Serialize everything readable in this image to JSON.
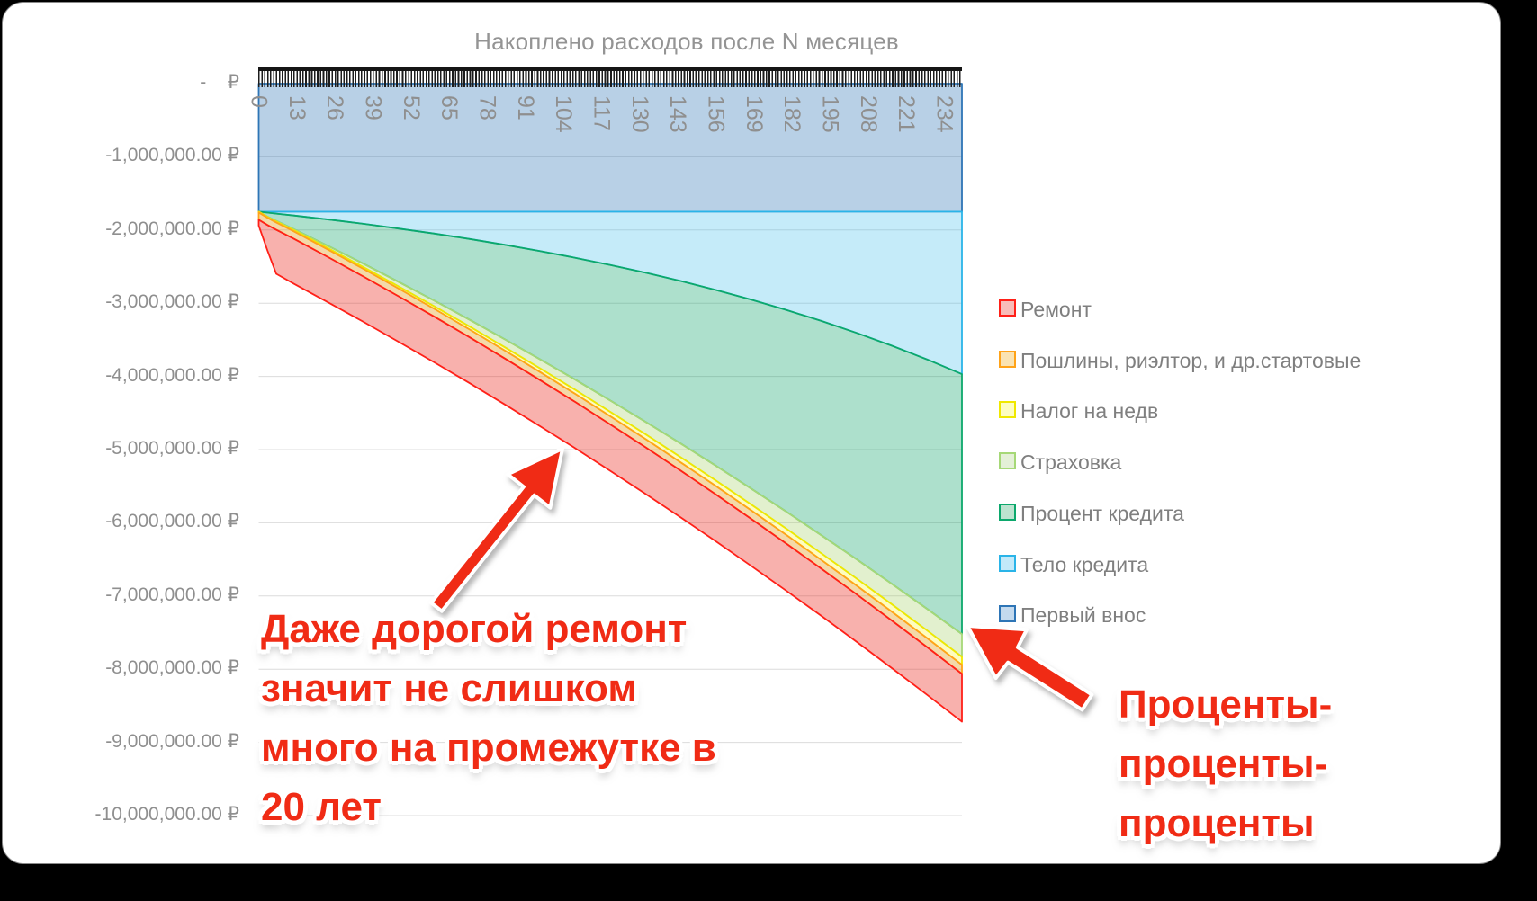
{
  "chart": {
    "title": "Накоплено расходов после N месяцев",
    "y_axis_labels": [
      "-    ₽",
      "-1,000,000.00 ₽",
      "-2,000,000.00 ₽",
      "-3,000,000.00 ₽",
      "-4,000,000.00 ₽",
      "-5,000,000.00 ₽",
      "-6,000,000.00 ₽",
      "-7,000,000.00 ₽",
      "-8,000,000.00 ₽",
      "-9,000,000.00 ₽",
      "-10,000,000.00 ₽"
    ],
    "x_axis_labels": [
      "0",
      "13",
      "26",
      "39",
      "52",
      "65",
      "78",
      "91",
      "104",
      "117",
      "130",
      "143",
      "156",
      "169",
      "182",
      "195",
      "208",
      "221",
      "234"
    ],
    "axis_text_color": "#8f8f8f",
    "gridline_color": "#dcdcdc",
    "legend": [
      {
        "label": "Ремонт",
        "swatch_fill": "#F8BCB8",
        "swatch_border": "#FF2018"
      },
      {
        "label": "Пошлины, риэлтор, и др.стартовые",
        "swatch_fill": "#FAE3B2",
        "swatch_border": "#FFA319"
      },
      {
        "label": "Налог на недв",
        "swatch_fill": "#FDFDC0",
        "swatch_border": "#F0E800"
      },
      {
        "label": "Страховка",
        "swatch_fill": "#E4F0D7",
        "swatch_border": "#A6D877"
      },
      {
        "label": "Процент кредита",
        "swatch_fill": "#BCE3CF",
        "swatch_border": "#0CA86C"
      },
      {
        "label": "Тело кредита",
        "swatch_fill": "#C2E9F9",
        "swatch_border": "#2AB4E8"
      },
      {
        "label": "Первый внос",
        "swatch_fill": "#C4DAEE",
        "swatch_border": "#2E75B6"
      }
    ]
  },
  "chart_data": {
    "type": "area",
    "stacked": true,
    "title": "Накоплено расходов после N месяцев",
    "x_unit": "месяцы",
    "x_range": [
      0,
      240
    ],
    "x_tick_step": 13,
    "ylim_rub": [
      -10000000,
      0
    ],
    "gridline_interval_rub": 1000000,
    "values_meaning": "накопленные расходы каждой категории в рублях, отложены вниз (отрицательная область), стопка сверху вниз",
    "months": [
      0,
      3,
      6,
      12,
      24,
      36,
      48,
      60,
      72,
      84,
      96,
      108,
      120,
      132,
      144,
      156,
      168,
      180,
      192,
      204,
      216,
      228,
      240
    ],
    "series": [
      {
        "name": "Первый внос",
        "border_color": "#2E75B6",
        "fill_color": "rgba(46,117,182,0.34)",
        "values_rub": [
          1750000,
          1750000,
          1750000,
          1750000,
          1750000,
          1750000,
          1750000,
          1750000,
          1750000,
          1750000,
          1750000,
          1750000,
          1750000,
          1750000,
          1750000,
          1750000,
          1750000,
          1750000,
          1750000,
          1750000,
          1750000,
          1750000,
          1750000
        ]
      },
      {
        "name": "Тело кредита",
        "border_color": "#2AB4E8",
        "fill_color": "rgba(41,180,232,0.27)",
        "values_rub": [
          0,
          13000,
          26000,
          52000,
          107000,
          167000,
          231000,
          299000,
          373000,
          453000,
          538000,
          629000,
          728000,
          833000,
          947000,
          1069000,
          1200000,
          1341000,
          1492000,
          1655000,
          1830000,
          2017000,
          2219000
        ]
      },
      {
        "name": "Процент кредита",
        "border_color": "#0CA86C",
        "fill_color": "rgba(0,160,95,0.32)",
        "values_rub": [
          0,
          55000,
          100000,
          187000,
          367000,
          549000,
          733000,
          918000,
          1104000,
          1291000,
          1478000,
          1665000,
          1852000,
          2037000,
          2221000,
          2402000,
          2581000,
          2756000,
          2927000,
          3093000,
          3253000,
          3406000,
          3551000
        ]
      },
      {
        "name": "Страховка",
        "border_color": "#A6D877",
        "fill_color": "rgba(150,200,80,0.28)",
        "values_rub": [
          0,
          4000,
          8000,
          15000,
          31000,
          46000,
          62000,
          77000,
          93000,
          108000,
          124000,
          139000,
          155000,
          170000,
          186000,
          201000,
          217000,
          232000,
          248000,
          263000,
          279000,
          294000,
          310000
        ]
      },
      {
        "name": "Налог на недв",
        "border_color": "#F0E800",
        "fill_color": "rgba(250,245,0,0.25)",
        "values_rub": [
          10000,
          11000,
          13000,
          15000,
          20000,
          25000,
          30000,
          35000,
          40000,
          45000,
          50000,
          55000,
          60000,
          65000,
          70000,
          75000,
          80000,
          85000,
          90000,
          95000,
          100000,
          105000,
          110000
        ]
      },
      {
        "name": "Пошлины, риэлтор, и др.стартовые",
        "border_color": "#FFA319",
        "fill_color": "rgba(225,155,30,0.38)",
        "values_rub": [
          100000,
          100000,
          101000,
          101000,
          102000,
          104000,
          105000,
          106000,
          107000,
          108000,
          110000,
          111000,
          112000,
          113000,
          114000,
          116000,
          117000,
          118000,
          119000,
          120000,
          122000,
          123000,
          124000
        ]
      },
      {
        "name": "Ремонт",
        "border_color": "#FF2018",
        "fill_color": "rgba(235,25,15,0.34)",
        "values_rub": [
          80000,
          350000,
          600000,
          615000,
          618000,
          620000,
          622000,
          624000,
          626000,
          628000,
          630000,
          632000,
          634000,
          636000,
          638000,
          640000,
          642000,
          644000,
          646000,
          648000,
          650000,
          652000,
          654000
        ]
      }
    ],
    "legend_position": "right"
  },
  "annotations": {
    "renovation_note": {
      "lines": [
        "Даже дорогой ремонт",
        "значит не слишком",
        "много на промежутке в",
        "20 лет"
      ],
      "color": "#F02B15"
    },
    "interest_note": {
      "lines": [
        "Проценты-",
        "проценты-",
        "проценты"
      ],
      "color": "#F02B15"
    }
  }
}
